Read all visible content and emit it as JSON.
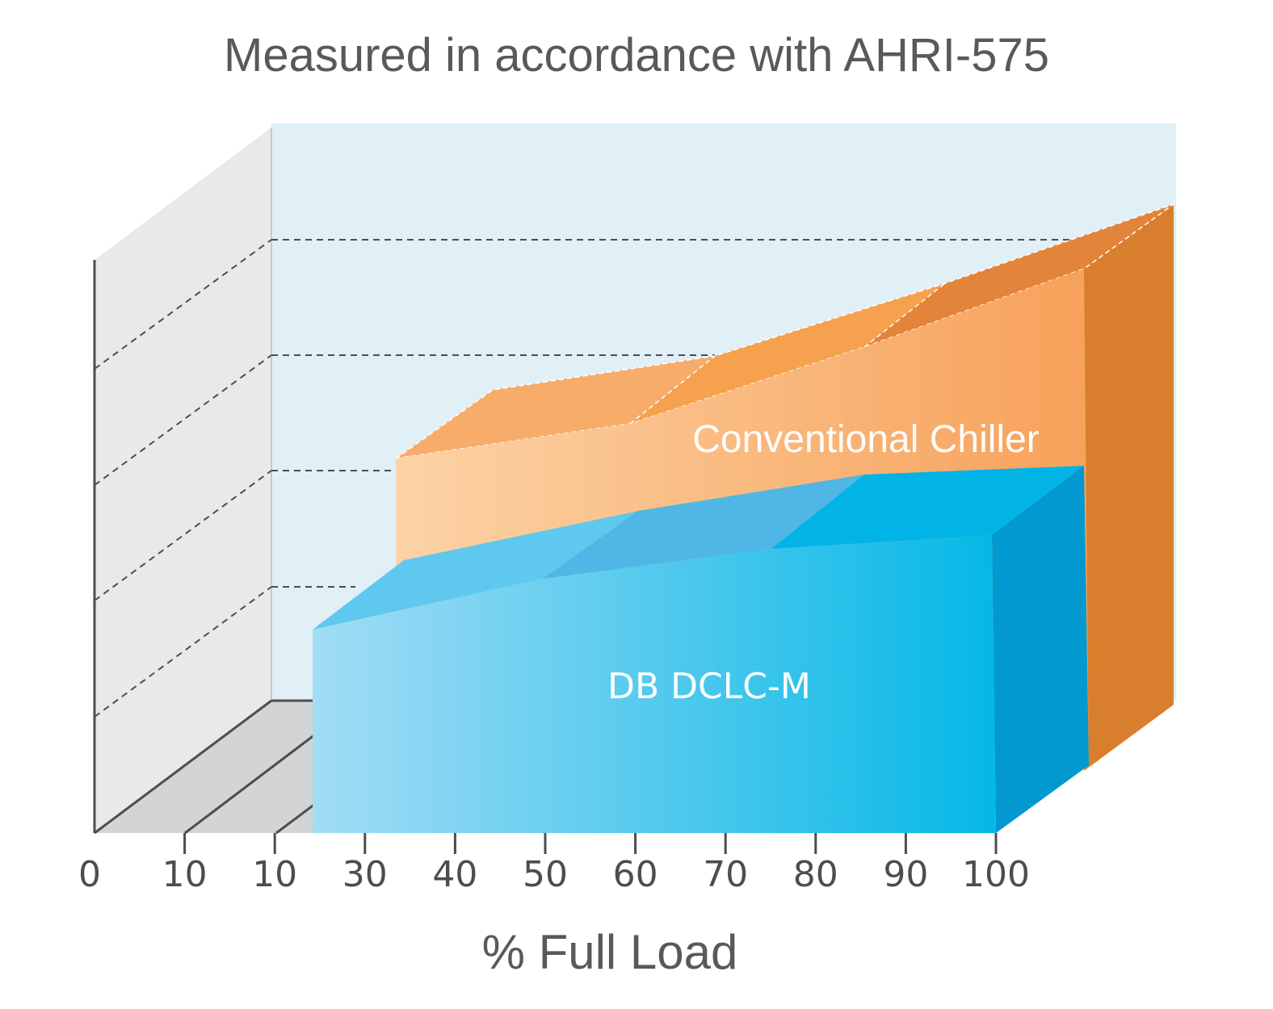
{
  "chart_data": {
    "type": "area",
    "title": "Measured in accordance with AHRI-575",
    "xlabel": "% Full Load",
    "ylabel": "",
    "x_ticks": [
      "0",
      "10",
      "10",
      "30",
      "40",
      "50",
      "60",
      "70",
      "80",
      "90",
      "100"
    ],
    "x_range": [
      0,
      100
    ],
    "y_range": [
      0,
      100
    ],
    "grid": true,
    "series": [
      {
        "name": "Conventional Chiller",
        "x": [
          25,
          60,
          85,
          100
        ],
        "y": [
          32,
          57,
          66,
          77
        ],
        "color": "#f7a35c",
        "side_color": "#d97e2c"
      },
      {
        "name": "DB DCLC-M",
        "x": [
          25,
          60,
          85,
          100
        ],
        "y": [
          20,
          40,
          45,
          48
        ],
        "color": "#29b6e6",
        "side_color": "#0099cf"
      }
    ]
  }
}
